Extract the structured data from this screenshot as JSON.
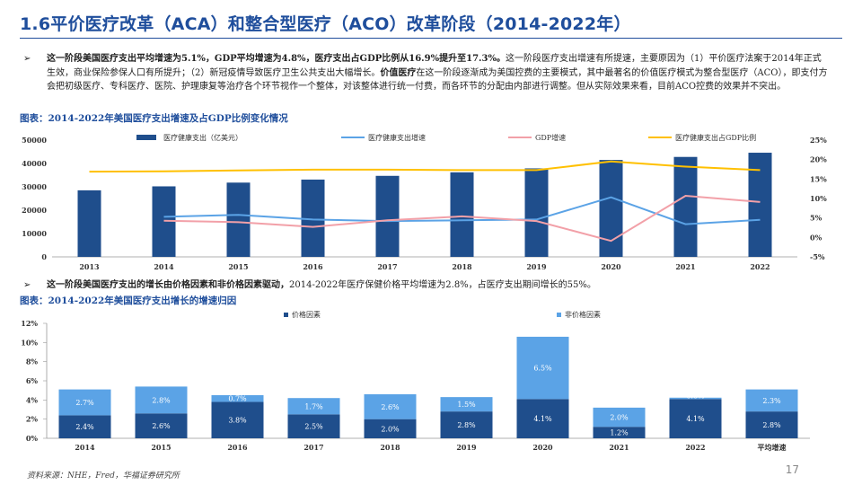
{
  "header": {
    "title": "1.6平价医疗改革（ACA）和整合型医疗（ACO）改革阶段（2014-2022年）"
  },
  "para1": {
    "bullet": "➢",
    "bold1": "这一阶段美国医疗支出平均增速为5.1%，GDP平均增速为4.8%，医疗支出占GDP比例从16.9%提升至17.3%。",
    "text1": "这一阶段医疗支出增速有所提速，主要原因为（1）平价医疗法案于2014年正式生效，商业保险参保人口有所提升；（2）新冠疫情导致医疗卫生公共支出大幅增长。",
    "bold2": "价值医疗",
    "text2": "在这一阶段逐渐成为美国控费的主要模式，其中最著名的价值医疗模式为整合型医疗（ACO），即支付方会把初级医疗、专科医疗、医院、护理康复等治疗各个环节视作一个整体，对该整体进行统一付费，而各环节的分配由内部进行调整。但从实际效果来看，目前ACO控费的效果并不突出。"
  },
  "caption1": "图表：2014-2022年美国医疗支出增速及占GDP比例变化情况",
  "para2": {
    "bullet": "➢",
    "bold": "这一阶段美国医疗支出的增长由价格因素和非价格因素驱动，",
    "text": "2014-2022年医疗保健价格平均增速为2.8%，占医疗支出期间增长的55%。"
  },
  "caption2": "图表：2014-2022年美国医疗支出增长的增速归因",
  "footer": {
    "source": "资料来源：NHE，Fred，华福证券研究所",
    "page": "17"
  },
  "colors": {
    "title": "#1f4e9c",
    "bar_dark": "#1f4e8c",
    "bar_light": "#5ba3e6",
    "line_blue": "#5ba3e6",
    "line_pink": "#f2a0a8",
    "line_yellow": "#ffc000"
  },
  "chart_data": [
    {
      "type": "bar",
      "categories": [
        "2013",
        "2014",
        "2015",
        "2016",
        "2017",
        "2018",
        "2019",
        "2020",
        "2021",
        "2022"
      ],
      "series": [
        {
          "name": "医疗健康支出（亿美元）",
          "kind": "bar",
          "axis": "left",
          "values": [
            28500,
            30200,
            31800,
            33100,
            34700,
            36200,
            37900,
            41500,
            42800,
            44600
          ]
        },
        {
          "name": "医疗健康支出增速",
          "kind": "line",
          "axis": "right",
          "values": [
            null,
            5.3,
            5.8,
            4.6,
            4.2,
            4.4,
            4.6,
            10.3,
            3.4,
            4.5
          ]
        },
        {
          "name": "GDP增速",
          "kind": "line",
          "axis": "right",
          "values": [
            null,
            4.3,
            3.9,
            2.7,
            4.4,
            5.4,
            4.2,
            -0.9,
            10.7,
            9.1
          ]
        },
        {
          "name": "医疗健康支出占GDP比例",
          "kind": "line",
          "axis": "right",
          "values": [
            16.9,
            17.0,
            17.2,
            17.4,
            17.4,
            17.3,
            17.3,
            19.5,
            18.2,
            17.3
          ]
        }
      ],
      "y_left": {
        "min": 0,
        "max": 50000,
        "ticks": [
          "0",
          "10000",
          "20000",
          "30000",
          "40000",
          "50000"
        ]
      },
      "y_right": {
        "min": -5,
        "max": 25,
        "ticks": [
          "-5%",
          "0%",
          "5%",
          "10%",
          "15%",
          "20%",
          "25%"
        ]
      },
      "legend_position": "top"
    },
    {
      "type": "bar",
      "stacked": true,
      "categories": [
        "2014",
        "2015",
        "2016",
        "2017",
        "2018",
        "2019",
        "2020",
        "2021",
        "2022",
        "平均增速"
      ],
      "series": [
        {
          "name": "价格因素",
          "values": [
            2.4,
            2.6,
            3.8,
            2.5,
            2.0,
            2.8,
            4.1,
            1.2,
            4.1,
            2.8
          ],
          "labels": [
            "2.4%",
            "2.6%",
            "3.8%",
            "2.5%",
            "2.0%",
            "2.8%",
            "4.1%",
            "1.2%",
            "4.1%",
            "2.8%"
          ]
        },
        {
          "name": "非价格因素",
          "values": [
            2.7,
            2.8,
            0.7,
            1.7,
            2.6,
            1.5,
            6.5,
            2.0,
            0.0,
            2.3
          ],
          "labels": [
            "2.7%",
            "2.8%",
            "0.7%",
            "1.7%",
            "2.6%",
            "1.5%",
            "6.5%",
            "2.0%",
            "0.0%",
            "2.3%"
          ]
        }
      ],
      "y": {
        "min": 0,
        "max": 12,
        "ticks": [
          "0%",
          "2%",
          "4%",
          "6%",
          "8%",
          "10%",
          "12%"
        ]
      },
      "legend_position": "top"
    }
  ]
}
